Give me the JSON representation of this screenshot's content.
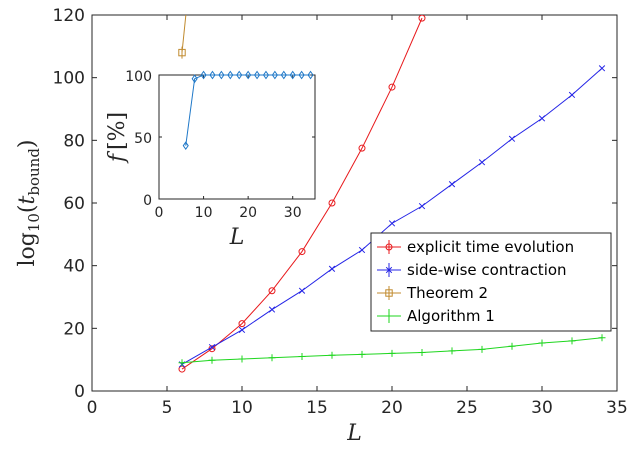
{
  "chart_data": [
    {
      "type": "line",
      "xlabel": "L",
      "ylabel": "log10(t_bound)",
      "ylabel_parts": {
        "base": "log",
        "sub": "10",
        "open": "(",
        "var": "t",
        "var_sub": "bound",
        "close": ")"
      },
      "xlim": [
        0,
        35
      ],
      "ylim": [
        0,
        120
      ],
      "xticks": [
        0,
        5,
        10,
        15,
        20,
        25,
        30,
        35
      ],
      "yticks": [
        0,
        20,
        40,
        60,
        80,
        100,
        120
      ],
      "grid": false,
      "legend_position": "lower-right",
      "series": [
        {
          "name": "explicit time evolution",
          "color": "#e8191c",
          "marker": "circle",
          "x": [
            6,
            8,
            10,
            12,
            14,
            16,
            18,
            20,
            22
          ],
          "y": [
            7,
            13.5,
            21.5,
            32,
            44.5,
            60,
            77.5,
            97,
            119
          ]
        },
        {
          "name": "side-wise contraction",
          "color": "#2424e6",
          "marker": "x",
          "x": [
            6,
            8,
            10,
            12,
            14,
            16,
            18,
            20,
            22,
            24,
            26,
            28,
            30,
            32,
            34
          ],
          "y": [
            8.5,
            14,
            19.5,
            26,
            32,
            39,
            45,
            53.5,
            59,
            66,
            73,
            80.5,
            87,
            94.5,
            103
          ]
        },
        {
          "name": "Theorem 2",
          "color": "#c08a2e",
          "marker": "square",
          "x": [
            6,
            6.3
          ],
          "y": [
            108,
            122
          ],
          "marker_indices": [
            0
          ]
        },
        {
          "name": "Algorithm 1",
          "color": "#1ed61e",
          "marker": "plus",
          "x": [
            6,
            8,
            10,
            12,
            14,
            16,
            18,
            20,
            22,
            24,
            26,
            28,
            30,
            32,
            34
          ],
          "y": [
            9,
            9.8,
            10.2,
            10.6,
            11,
            11.4,
            11.7,
            12,
            12.3,
            12.8,
            13.3,
            14.3,
            15.3,
            16,
            17
          ]
        }
      ]
    },
    {
      "type": "line",
      "xlabel": "L",
      "ylabel": "f [%]",
      "ylabel_parts": {
        "var": "f",
        "unit": "[%]"
      },
      "xlim": [
        0,
        35
      ],
      "ylim": [
        0,
        100
      ],
      "xticks": [
        0,
        10,
        20,
        30
      ],
      "yticks": [
        0,
        50,
        100
      ],
      "grid": false,
      "series": [
        {
          "color": "#1f78c8",
          "marker": "diamond",
          "x": [
            6,
            8,
            10,
            12,
            14,
            16,
            18,
            20,
            22,
            24,
            26,
            28,
            30,
            32,
            34
          ],
          "y": [
            43,
            97,
            100,
            100,
            100,
            100,
            100,
            100,
            100,
            100,
            100,
            100,
            100,
            100,
            100
          ]
        }
      ]
    }
  ]
}
